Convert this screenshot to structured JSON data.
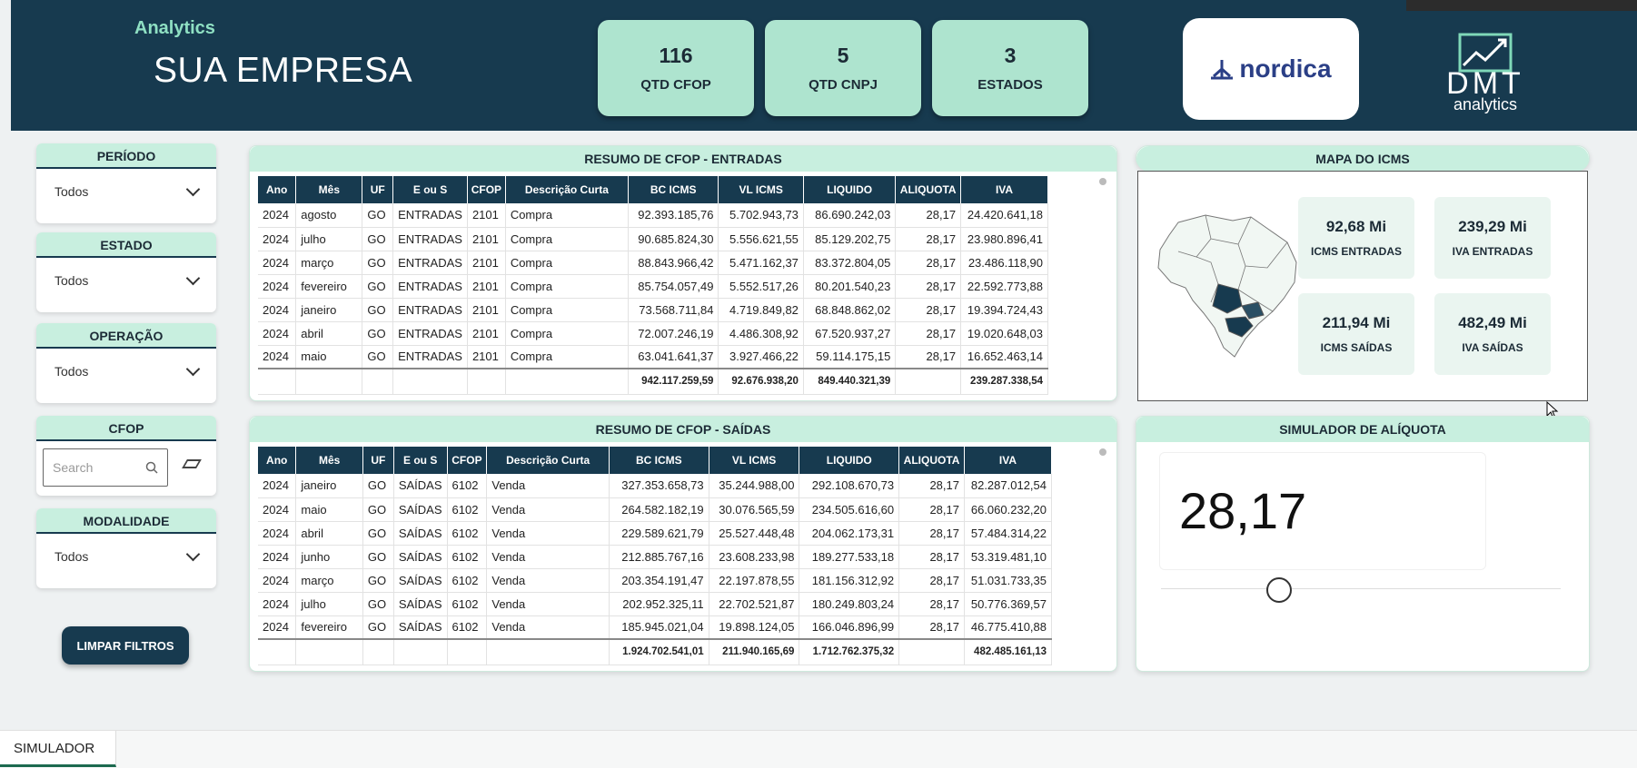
{
  "header": {
    "app_label": "Analytics",
    "company": "SUA EMPRESA",
    "kpis": [
      {
        "value": "116",
        "label": "QTD CFOP"
      },
      {
        "value": "5",
        "label": "QTD CNPJ"
      },
      {
        "value": "3",
        "label": "ESTADOS"
      }
    ],
    "partner_logo": "nordica",
    "brand_logo_main": "DMT",
    "brand_logo_sub": "analytics"
  },
  "filters": {
    "periodo": {
      "title": "PERÍODO",
      "value": "Todos"
    },
    "estado": {
      "title": "ESTADO",
      "value": "Todos"
    },
    "operacao": {
      "title": "OPERAÇÃO",
      "value": "Todos"
    },
    "cfop": {
      "title": "CFOP",
      "placeholder": "Search"
    },
    "modalidade": {
      "title": "MODALIDADE",
      "value": "Todos"
    },
    "clear_button": "LIMPAR FILTROS"
  },
  "entradas": {
    "title": "RESUMO DE CFOP - ENTRADAS",
    "columns": [
      "Ano",
      "Mês",
      "UF",
      "E ou S",
      "CFOP",
      "Descrição Curta",
      "BC ICMS",
      "VL ICMS",
      "LIQUIDO",
      "ALIQUOTA",
      "IVA"
    ],
    "rows": [
      [
        "2024",
        "agosto",
        "GO",
        "ENTRADAS",
        "2101",
        "Compra",
        "92.393.185,76",
        "5.702.943,73",
        "86.690.242,03",
        "28,17",
        "24.420.641,18"
      ],
      [
        "2024",
        "julho",
        "GO",
        "ENTRADAS",
        "2101",
        "Compra",
        "90.685.824,30",
        "5.556.621,55",
        "85.129.202,75",
        "28,17",
        "23.980.896,41"
      ],
      [
        "2024",
        "março",
        "GO",
        "ENTRADAS",
        "2101",
        "Compra",
        "88.843.966,42",
        "5.471.162,37",
        "83.372.804,05",
        "28,17",
        "23.486.118,90"
      ],
      [
        "2024",
        "fevereiro",
        "GO",
        "ENTRADAS",
        "2101",
        "Compra",
        "85.754.057,49",
        "5.552.517,26",
        "80.201.540,23",
        "28,17",
        "22.592.773,88"
      ],
      [
        "2024",
        "janeiro",
        "GO",
        "ENTRADAS",
        "2101",
        "Compra",
        "73.568.711,84",
        "4.719.849,82",
        "68.848.862,02",
        "28,17",
        "19.394.724,43"
      ],
      [
        "2024",
        "abril",
        "GO",
        "ENTRADAS",
        "2101",
        "Compra",
        "72.007.246,19",
        "4.486.308,92",
        "67.520.937,27",
        "28,17",
        "19.020.648,03"
      ],
      [
        "2024",
        "maio",
        "GO",
        "ENTRADAS",
        "2101",
        "Compra",
        "63.041.641,37",
        "3.927.466,22",
        "59.114.175,15",
        "28,17",
        "16.652.463,14"
      ]
    ],
    "totals": [
      "",
      "",
      "",
      "",
      "",
      "",
      "942.117.259,59",
      "92.676.938,20",
      "849.440.321,39",
      "",
      "239.287.338,54"
    ]
  },
  "saidas": {
    "title": "RESUMO DE CFOP - SAÍDAS",
    "columns": [
      "Ano",
      "Mês",
      "UF",
      "E ou S",
      "CFOP",
      "Descrição Curta",
      "BC ICMS",
      "VL ICMS",
      "LIQUIDO",
      "ALIQUOTA",
      "IVA"
    ],
    "rows": [
      [
        "2024",
        "janeiro",
        "GO",
        "SAÍDAS",
        "6102",
        "Venda",
        "327.353.658,73",
        "35.244.988,00",
        "292.108.670,73",
        "28,17",
        "82.287.012,54"
      ],
      [
        "2024",
        "maio",
        "GO",
        "SAÍDAS",
        "6102",
        "Venda",
        "264.582.182,19",
        "30.076.565,59",
        "234.505.616,60",
        "28,17",
        "66.060.232,20"
      ],
      [
        "2024",
        "abril",
        "GO",
        "SAÍDAS",
        "6102",
        "Venda",
        "229.589.621,79",
        "25.527.448,48",
        "204.062.173,31",
        "28,17",
        "57.484.314,22"
      ],
      [
        "2024",
        "junho",
        "GO",
        "SAÍDAS",
        "6102",
        "Venda",
        "212.885.767,16",
        "23.608.233,98",
        "189.277.533,18",
        "28,17",
        "53.319.481,10"
      ],
      [
        "2024",
        "março",
        "GO",
        "SAÍDAS",
        "6102",
        "Venda",
        "203.354.191,47",
        "22.197.878,55",
        "181.156.312,92",
        "28,17",
        "51.031.733,35"
      ],
      [
        "2024",
        "julho",
        "GO",
        "SAÍDAS",
        "6102",
        "Venda",
        "202.952.325,11",
        "22.702.521,87",
        "180.249.803,24",
        "28,17",
        "50.776.369,57"
      ],
      [
        "2024",
        "fevereiro",
        "GO",
        "SAÍDAS",
        "6102",
        "Venda",
        "185.945.021,04",
        "19.898.124,05",
        "166.046.896,99",
        "28,17",
        "46.775.410,88"
      ]
    ],
    "totals": [
      "",
      "",
      "",
      "",
      "",
      "",
      "1.924.702.541,01",
      "211.940.165,69",
      "1.712.762.375,32",
      "",
      "482.485.161,13"
    ]
  },
  "map": {
    "title": "MAPA DO ICMS",
    "cards": [
      {
        "value": "92,68 Mi",
        "label": "ICMS ENTRADAS"
      },
      {
        "value": "239,29 Mi",
        "label": "IVA ENTRADAS"
      },
      {
        "value": "211,94 Mi",
        "label": "ICMS SAÍDAS"
      },
      {
        "value": "482,49 Mi",
        "label": "IVA SAÍDAS"
      }
    ]
  },
  "simulator": {
    "title": "SIMULADOR DE ALÍQUOTA",
    "value": "28,17"
  },
  "tabs": [
    "SIMULADOR"
  ],
  "colors": {
    "header_bg": "#173a4f",
    "accent_mint": "#aee4cf",
    "panel_title": "#c8efdf"
  }
}
